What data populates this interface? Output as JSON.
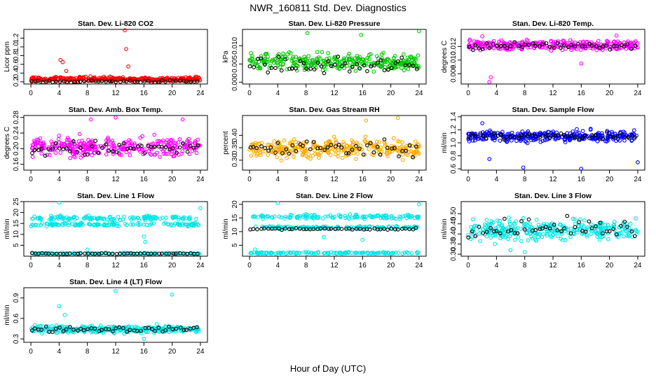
{
  "figure": {
    "title": "NWR_160811  Std. Dev. Diagnostics",
    "xlabel": "Hour of Day (UTC)"
  },
  "chart_data": [
    {
      "type": "scatter",
      "title": "Stan. Dev. Li-820 CO2",
      "ylabel": "Licor ppm",
      "xlim": [
        -1,
        25
      ],
      "ylim": [
        0.15,
        1.4
      ],
      "yticks": [
        0.2,
        0.4,
        0.6,
        0.8,
        1.0,
        1.2
      ],
      "xticks": [
        0,
        4,
        8,
        12,
        16,
        20,
        24
      ],
      "color": "#ff0000",
      "base": 0.26,
      "spread": 0.05,
      "black_base": 0.21,
      "black_spread": 0.03,
      "outliers": [
        [
          4.2,
          0.7
        ],
        [
          4.5,
          0.65
        ],
        [
          13.3,
          1.38
        ],
        [
          13.5,
          0.95
        ],
        [
          13.8,
          0.55
        ],
        [
          5.0,
          0.45
        ],
        [
          22.5,
          0.3
        ]
      ]
    },
    {
      "type": "scatter",
      "title": "Stan. Dev. Li-820 Pressure",
      "ylabel": "kPa",
      "xlim": [
        -1,
        25
      ],
      "ylim": [
        -0.0005,
        0.0145
      ],
      "yticks": [
        0.0,
        0.005,
        0.01
      ],
      "xticks": [
        0,
        4,
        8,
        12,
        16,
        20,
        24
      ],
      "color": "#00c800",
      "base": 0.0055,
      "spread": 0.0022,
      "black_base": 0.0045,
      "black_spread": 0.002,
      "outliers": [
        [
          8.2,
          0.0135
        ],
        [
          15.8,
          0.013
        ],
        [
          24.0,
          0.014
        ],
        [
          0.2,
          0.008
        ]
      ]
    },
    {
      "type": "scatter",
      "title": "Stan. Dev. Li-820 Temp.",
      "ylabel": "degrees C",
      "xlim": [
        -1,
        25
      ],
      "ylim": [
        0.0065,
        0.0145
      ],
      "yticks": [
        0.008,
        0.01,
        0.012
      ],
      "xticks": [
        0,
        4,
        8,
        12,
        16,
        20,
        24
      ],
      "color": "#ff00ff",
      "base": 0.0122,
      "spread": 0.0007,
      "black_base": 0.0121,
      "black_spread": 0.0006,
      "outliers": [
        [
          3.0,
          0.0068
        ],
        [
          3.2,
          0.0075
        ],
        [
          2.0,
          0.0135
        ],
        [
          16.0,
          0.0095
        ],
        [
          21.0,
          0.0136
        ]
      ]
    },
    {
      "type": "scatter",
      "title": "Stan. Dev. Amb. Box Temp.",
      "ylabel": "degrees C",
      "xlim": [
        -1,
        25
      ],
      "ylim": [
        0.145,
        0.285
      ],
      "yticks": [
        0.16,
        0.2,
        0.24,
        0.28
      ],
      "xticks": [
        0,
        4,
        8,
        12,
        16,
        20,
        24
      ],
      "color": "#ff00ff",
      "base": 0.205,
      "spread": 0.022,
      "black_base": 0.2,
      "black_spread": 0.02,
      "outliers": [
        [
          8.5,
          0.275
        ],
        [
          12.0,
          0.28
        ],
        [
          21.5,
          0.275
        ]
      ]
    },
    {
      "type": "scatter",
      "title": "Stan. Dev. Gas Stream RH",
      "ylabel": "percent",
      "xlim": [
        -1,
        25
      ],
      "ylim": [
        0.26,
        0.48
      ],
      "yticks": [
        0.3,
        0.35,
        0.4
      ],
      "xticks": [
        0,
        4,
        8,
        12,
        16,
        20,
        24
      ],
      "color": "#ffaa00",
      "base": 0.345,
      "spread": 0.035,
      "black_base": 0.35,
      "black_spread": 0.03,
      "outliers": [
        [
          16.5,
          0.46
        ],
        [
          21.0,
          0.47
        ]
      ]
    },
    {
      "type": "scatter",
      "title": "Stan. Dev. Sample Flow",
      "ylabel": "ml/min",
      "xlim": [
        -1,
        25
      ],
      "ylim": [
        0.58,
        1.42
      ],
      "yticks": [
        0.6,
        0.8,
        1.0,
        1.2,
        1.4
      ],
      "xticks": [
        0,
        4,
        8,
        12,
        16,
        20,
        24
      ],
      "color": "#0000ff",
      "base": 1.1,
      "spread": 0.08,
      "black_base": 1.1,
      "black_spread": 0.06,
      "outliers": [
        [
          3.0,
          0.75
        ],
        [
          7.8,
          0.62
        ],
        [
          16.0,
          0.6
        ],
        [
          24.0,
          0.7
        ],
        [
          2.0,
          1.3
        ]
      ]
    },
    {
      "type": "scatter",
      "title": "Stan. Dev. Line 1 Flow",
      "ylabel": "ml/min",
      "xlim": [
        -1,
        25
      ],
      "ylim": [
        0,
        25
      ],
      "yticks": [
        5,
        10,
        15,
        20,
        25
      ],
      "xticks": [
        0,
        4,
        8,
        12,
        16,
        20,
        24
      ],
      "color": "#00e5e5",
      "bands": [
        [
          17.5,
          1.0
        ],
        [
          14.5,
          0.8
        ],
        [
          1.2,
          0.3
        ]
      ],
      "black_bands": [
        [
          1.2,
          0.2
        ]
      ],
      "outliers": [
        [
          4.0,
          24.5
        ],
        [
          8.0,
          3.0
        ],
        [
          16.0,
          9.0
        ],
        [
          16.2,
          6.5
        ],
        [
          24.0,
          22.0
        ]
      ]
    },
    {
      "type": "scatter",
      "title": "Stan. Dev. Line 2 Flow",
      "ylabel": "ml/min",
      "xlim": [
        -1,
        25
      ],
      "ylim": [
        1,
        21
      ],
      "yticks": [
        5,
        10,
        15,
        20
      ],
      "xticks": [
        0,
        4,
        8,
        12,
        16,
        20,
        24
      ],
      "color": "#00e5e5",
      "bands": [
        [
          15.5,
          0.8
        ],
        [
          11.5,
          0.5
        ],
        [
          2.2,
          0.3
        ]
      ],
      "black_bands": [
        [
          11.0,
          0.3
        ]
      ],
      "outliers": [
        [
          4.0,
          20.5
        ],
        [
          10.5,
          8.0
        ],
        [
          16.0,
          7.0
        ],
        [
          24.0,
          20.0
        ],
        [
          0.8,
          3.5
        ]
      ]
    },
    {
      "type": "scatter",
      "title": "Stan. Dev. Line 3 Flow",
      "ylabel": "ml/min",
      "xlim": [
        -1,
        25
      ],
      "ylim": [
        0.29,
        0.56
      ],
      "yticks": [
        0.3,
        0.35,
        0.4,
        0.45,
        0.5
      ],
      "xticks": [
        0,
        4,
        8,
        12,
        16,
        20,
        24
      ],
      "color": "#00e5e5",
      "base": 0.42,
      "spread": 0.05,
      "black_base": 0.43,
      "black_spread": 0.04,
      "outliers": [
        [
          6.0,
          0.32
        ],
        [
          8.0,
          0.31
        ]
      ]
    },
    {
      "type": "scatter",
      "title": "Stan. Dev. Line 4 (LT) Flow",
      "ylabel": "ml/min",
      "xlim": [
        -1,
        25
      ],
      "ylim": [
        0.25,
        1.05
      ],
      "yticks": [
        0.3,
        0.6,
        0.9
      ],
      "xticks": [
        0,
        4,
        8,
        12,
        16,
        20,
        24
      ],
      "color": "#00e5e5",
      "base": 0.44,
      "spread": 0.05,
      "black_base": 0.44,
      "black_spread": 0.04,
      "outliers": [
        [
          4.0,
          0.78
        ],
        [
          12.0,
          1.0
        ],
        [
          20.0,
          0.95
        ],
        [
          4.8,
          0.65
        ],
        [
          16.0,
          0.3
        ]
      ]
    }
  ]
}
